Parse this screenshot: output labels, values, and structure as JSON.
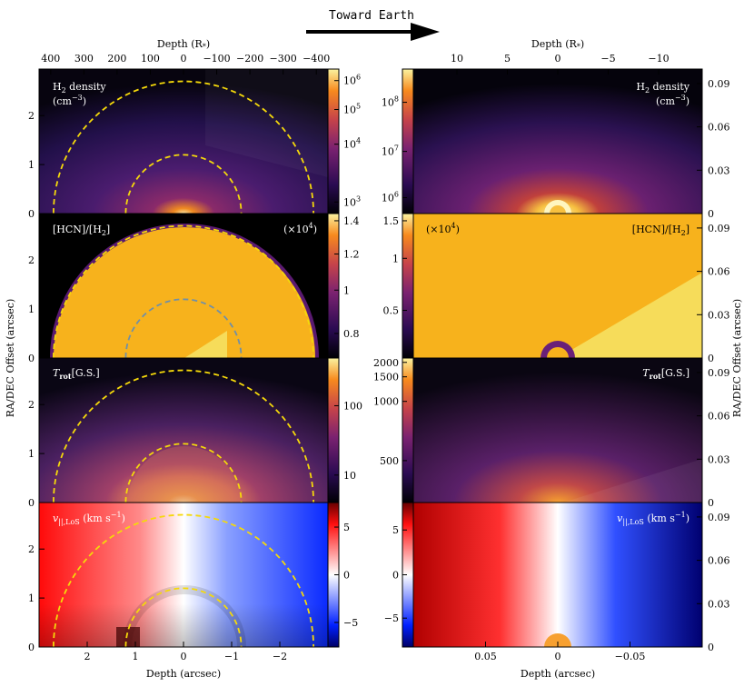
{
  "header": {
    "direction_label": "Toward Earth"
  },
  "colors": {
    "dashed_outer": "#f5d90a",
    "dashed_inner_hcn": "#6f8fa8",
    "hcn_fill": "#f7b21c",
    "hcn_pale": "#f6dc5a",
    "arrow": "#000000"
  },
  "chart_data": [
    {
      "type": "heatmap",
      "panels_shared_axes": {
        "left_top_axis_label": "Depth (R*)",
        "left_top_ticks": [
          "400",
          "300",
          "200",
          "100",
          "0",
          "−100",
          "−200",
          "−300",
          "−400"
        ],
        "left_bottom_axis_label": "Depth (arcsec)",
        "left_bottom_ticks": [
          "2",
          "1",
          "0",
          "−1",
          "−2"
        ],
        "left_y_label": "RA/DEC Offset (arcsec)",
        "left_y_ticks": [
          "0",
          "1",
          "2"
        ],
        "right_top_axis_label": "Depth (R*)",
        "right_top_ticks": [
          "10",
          "5",
          "0",
          "−5",
          "−10"
        ],
        "right_bottom_axis_label": "Depth (arcsec)",
        "right_bottom_ticks": [
          "0.05",
          "0",
          "−0.05"
        ],
        "right_y_label": "RA/DEC Offset (arcsec)",
        "right_y_ticks": [
          "0",
          "0.03",
          "0.06",
          "0.09"
        ],
        "xlim_left_arcsec": [
          3,
          -3
        ],
        "ylim_left_arcsec": [
          0,
          2.95
        ],
        "xlim_right_arcsec": [
          0.1,
          -0.1
        ],
        "ylim_right_arcsec": [
          0,
          0.1
        ]
      },
      "panels": [
        {
          "name": "h2-density",
          "label_main": "H",
          "label_sub": "2",
          "label_rest": " density",
          "units": "(cm",
          "units_sup": "−3",
          "units_end": ")",
          "left_colorbar_ticks": [
            {
              "t": "10",
              "e": "6",
              "v": 0.92
            },
            {
              "t": "10",
              "e": "5",
              "v": 0.72
            },
            {
              "t": "10",
              "e": "4",
              "v": 0.48
            },
            {
              "t": "10",
              "e": "3",
              "v": 0.08
            }
          ],
          "right_colorbar_ticks": [
            {
              "t": "10",
              "e": "8",
              "v": 0.77
            },
            {
              "t": "10",
              "e": "7",
              "v": 0.43
            },
            {
              "t": "10",
              "e": "6",
              "v": 0.11
            }
          ]
        },
        {
          "name": "hcn-abundance",
          "label": "[HCN]/[H",
          "label_sub": "2",
          "label_end": "]",
          "scale": "(×10",
          "scale_sup": "4",
          "scale_end": ")",
          "left_colorbar_ticks": [
            {
              "t": "1.4",
              "v": 0.95
            },
            {
              "t": "1.2",
              "v": 0.72
            },
            {
              "t": "1",
              "v": 0.47
            },
            {
              "t": "0.8",
              "v": 0.17
            }
          ],
          "right_colorbar_ticks": [
            {
              "t": "1.5",
              "v": 0.95
            },
            {
              "t": "1",
              "v": 0.69
            },
            {
              "t": "0.5",
              "v": 0.33
            }
          ]
        },
        {
          "name": "rotational-temperature",
          "label": "T",
          "label_sub": "rot",
          "label_end": "[G.S.]",
          "left_colorbar_ticks": [
            {
              "t": "100",
              "v": 0.67
            },
            {
              "t": "10",
              "v": 0.19
            }
          ],
          "right_colorbar_ticks": [
            {
              "t": "2000",
              "v": 0.97
            },
            {
              "t": "1500",
              "v": 0.87
            },
            {
              "t": "1000",
              "v": 0.7
            },
            {
              "t": "500",
              "v": 0.29
            }
          ]
        },
        {
          "name": "line-of-sight-velocity",
          "label": "v",
          "label_sub": "||,LoS",
          "label_end": " (km s",
          "label_sup": "−1",
          "label_close": ")",
          "left_colorbar_ticks": [
            {
              "t": "5",
              "v": 0.83
            },
            {
              "t": "0",
              "v": 0.5
            },
            {
              "t": "−5",
              "v": 0.17
            }
          ],
          "right_colorbar_ticks": [
            {
              "t": "5",
              "v": 0.81
            },
            {
              "t": "0",
              "v": 0.5
            },
            {
              "t": "−5",
              "v": 0.2
            }
          ]
        }
      ],
      "circles_arcsec": {
        "outer_radius": 2.7,
        "inner_radius": 1.2
      }
    }
  ]
}
